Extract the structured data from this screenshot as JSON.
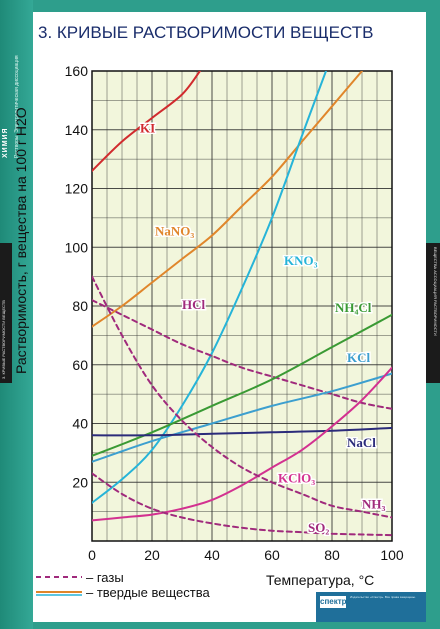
{
  "sidebar": {
    "subject": "ХИМИЯ",
    "subject_sub": "Растворы. Электролитическая диссоциация",
    "left_tab": "3. КРИВЫЕ РАСТВОРИМОСТИ ВЕЩЕСТВ",
    "right_tab": "ВЕЩЕСТВА АССОЦИАЦИЯ РАСТВОРИМОСТИ"
  },
  "footer": {
    "brand": "спектр",
    "fine_print": "Издательство «Спектр». Все права защищены."
  },
  "colors": {
    "KI": "#d12b2e",
    "NaNO3": "#e0862b",
    "KNO3": "#26b4d8",
    "HCl": "#a02a7c",
    "NH4Cl": "#3a9a34",
    "KCl": "#3c9fcf",
    "NaCl": "#2b2b7a",
    "KClO3": "#d33190",
    "NH3": "#a02a7c",
    "SO2": "#a02a7c",
    "grid": "#2b2b2b",
    "title": "#1a2d6b",
    "plot_bg": "#f2f6dc"
  },
  "chart_data": {
    "type": "line",
    "title": "3. КРИВЫЕ РАСТВОРИМОСТИ ВЕЩЕСТВ",
    "xlabel": "Температура, °С",
    "ylabel": "Растворимость, г вещества на 100 г H2O",
    "xlim": [
      0,
      100
    ],
    "ylim": [
      0,
      160
    ],
    "x_ticks": [
      0,
      20,
      40,
      60,
      80,
      100
    ],
    "y_ticks": [
      20,
      40,
      60,
      80,
      100,
      120,
      140,
      160
    ],
    "grid": true,
    "legend": {
      "placement": "bottom-left",
      "entries": [
        {
          "style": "dashed",
          "label": "– газы"
        },
        {
          "style": "solid",
          "label": "– твердые вещества"
        }
      ]
    },
    "series": [
      {
        "name": "KI",
        "label": "KI",
        "color_key": "KI",
        "style": "solid",
        "x": [
          0,
          10,
          20,
          30,
          36
        ],
        "y": [
          126,
          136,
          144,
          152,
          160
        ],
        "label_at": [
          16,
          139
        ]
      },
      {
        "name": "NaNO3",
        "label": "NaNO₃",
        "color_key": "NaNO3",
        "style": "solid",
        "x": [
          0,
          10,
          20,
          30,
          40,
          50,
          60,
          70,
          80,
          90
        ],
        "y": [
          73,
          80,
          88,
          96,
          104,
          114,
          124,
          136,
          148,
          160
        ],
        "label_at": [
          21,
          104
        ]
      },
      {
        "name": "KNO3",
        "label": "KNO₃",
        "color_key": "KNO3",
        "style": "solid",
        "x": [
          0,
          10,
          20,
          30,
          40,
          50,
          60,
          70,
          78
        ],
        "y": [
          13,
          21,
          31,
          46,
          64,
          86,
          110,
          138,
          160
        ],
        "label_at": [
          64,
          94
        ]
      },
      {
        "name": "HCl",
        "label": "HCl",
        "color_key": "HCl",
        "style": "dashed",
        "x": [
          0,
          10,
          20,
          30,
          40,
          50,
          60,
          70,
          80,
          90,
          100
        ],
        "y": [
          82,
          77,
          72,
          67,
          63,
          59,
          56,
          53,
          50,
          47,
          45
        ],
        "label_at": [
          30,
          79
        ]
      },
      {
        "name": "NH4Cl",
        "label": "NH₄Cl",
        "color_key": "NH4Cl",
        "style": "solid",
        "x": [
          0,
          20,
          40,
          60,
          80,
          100
        ],
        "y": [
          29,
          37,
          46,
          55,
          66,
          77
        ],
        "label_at": [
          81,
          78
        ]
      },
      {
        "name": "KCl",
        "label": "KCl",
        "color_key": "KCl",
        "style": "solid",
        "x": [
          0,
          20,
          40,
          60,
          80,
          100
        ],
        "y": [
          27,
          34,
          40,
          46,
          51,
          57
        ],
        "label_at": [
          85,
          61
        ]
      },
      {
        "name": "NaCl",
        "label": "NaCl",
        "color_key": "NaCl",
        "style": "solid",
        "x": [
          0,
          20,
          40,
          60,
          80,
          100
        ],
        "y": [
          36,
          36,
          36.5,
          37,
          37.5,
          38.5
        ],
        "label_at": [
          85,
          32
        ]
      },
      {
        "name": "KClO3",
        "label": "KClO₃",
        "color_key": "KClO3",
        "style": "solid",
        "x": [
          0,
          10,
          20,
          30,
          40,
          50,
          60,
          70,
          80,
          90,
          100
        ],
        "y": [
          7,
          8,
          9,
          11,
          14,
          19,
          25,
          31,
          39,
          48,
          59
        ],
        "label_at": [
          62,
          20
        ]
      },
      {
        "name": "NH3",
        "label": "NH₃",
        "color_key": "NH3",
        "style": "dashed",
        "x": [
          0,
          10,
          20,
          30,
          40,
          50,
          60,
          70,
          80,
          90,
          100
        ],
        "y": [
          90,
          70,
          53,
          41,
          32,
          25,
          20,
          16,
          12,
          10,
          8
        ],
        "label_at": [
          90,
          11
        ]
      },
      {
        "name": "SO2",
        "label": "SO₂",
        "color_key": "SO2",
        "style": "dashed",
        "x": [
          0,
          10,
          20,
          30,
          40,
          50,
          60,
          70,
          80,
          90,
          100
        ],
        "y": [
          23,
          16,
          11,
          8,
          6,
          4.5,
          3.5,
          3,
          2.5,
          2.2,
          2
        ],
        "label_at": [
          72,
          3
        ]
      }
    ]
  }
}
